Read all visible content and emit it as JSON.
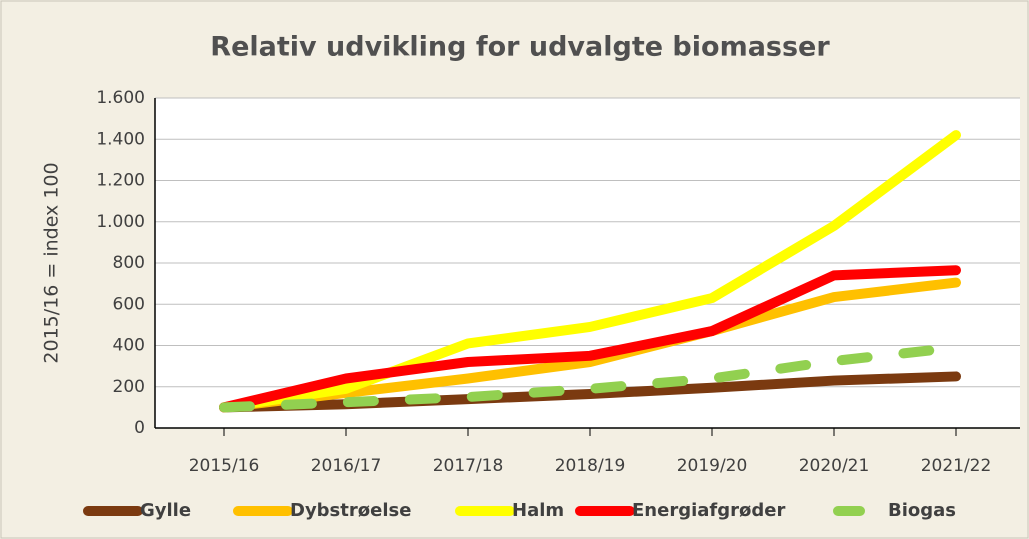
{
  "chart_data": {
    "type": "line",
    "title": "Relativ udvikling for udvalgte biomasser",
    "y_label": "2015/16 = index 100",
    "categories": [
      "2015/16",
      "2016/17",
      "2017/18",
      "2018/19",
      "2019/20",
      "2020/21",
      "2021/22"
    ],
    "series": [
      {
        "name": "Gylle",
        "color": "#7b3a10",
        "values": [
          100,
          115,
          140,
          165,
          195,
          230,
          250
        ]
      },
      {
        "name": "Dybstrøelse",
        "color": "#ffc000",
        "values": [
          100,
          170,
          240,
          320,
          470,
          635,
          705
        ]
      },
      {
        "name": "Halm",
        "color": "#ffff00",
        "values": [
          100,
          190,
          410,
          490,
          630,
          980,
          1420
        ]
      },
      {
        "name": "Energiafgrøder",
        "color": "#ff0000",
        "values": [
          100,
          240,
          320,
          350,
          470,
          740,
          765
        ]
      },
      {
        "name": "Biogas",
        "color": "#92d050",
        "dashed": true,
        "values": [
          100,
          125,
          150,
          190,
          240,
          325,
          390
        ]
      }
    ],
    "ylim": [
      0,
      1600
    ],
    "yticks": [
      0,
      200,
      400,
      600,
      800,
      {
        "value": 1000,
        "label": "1.000"
      },
      {
        "value": 1200,
        "label": "1.200"
      },
      {
        "value": 1400,
        "label": "1.400"
      },
      {
        "value": 1600,
        "label": "1.600"
      }
    ],
    "grid": true,
    "legend": "bottom"
  }
}
